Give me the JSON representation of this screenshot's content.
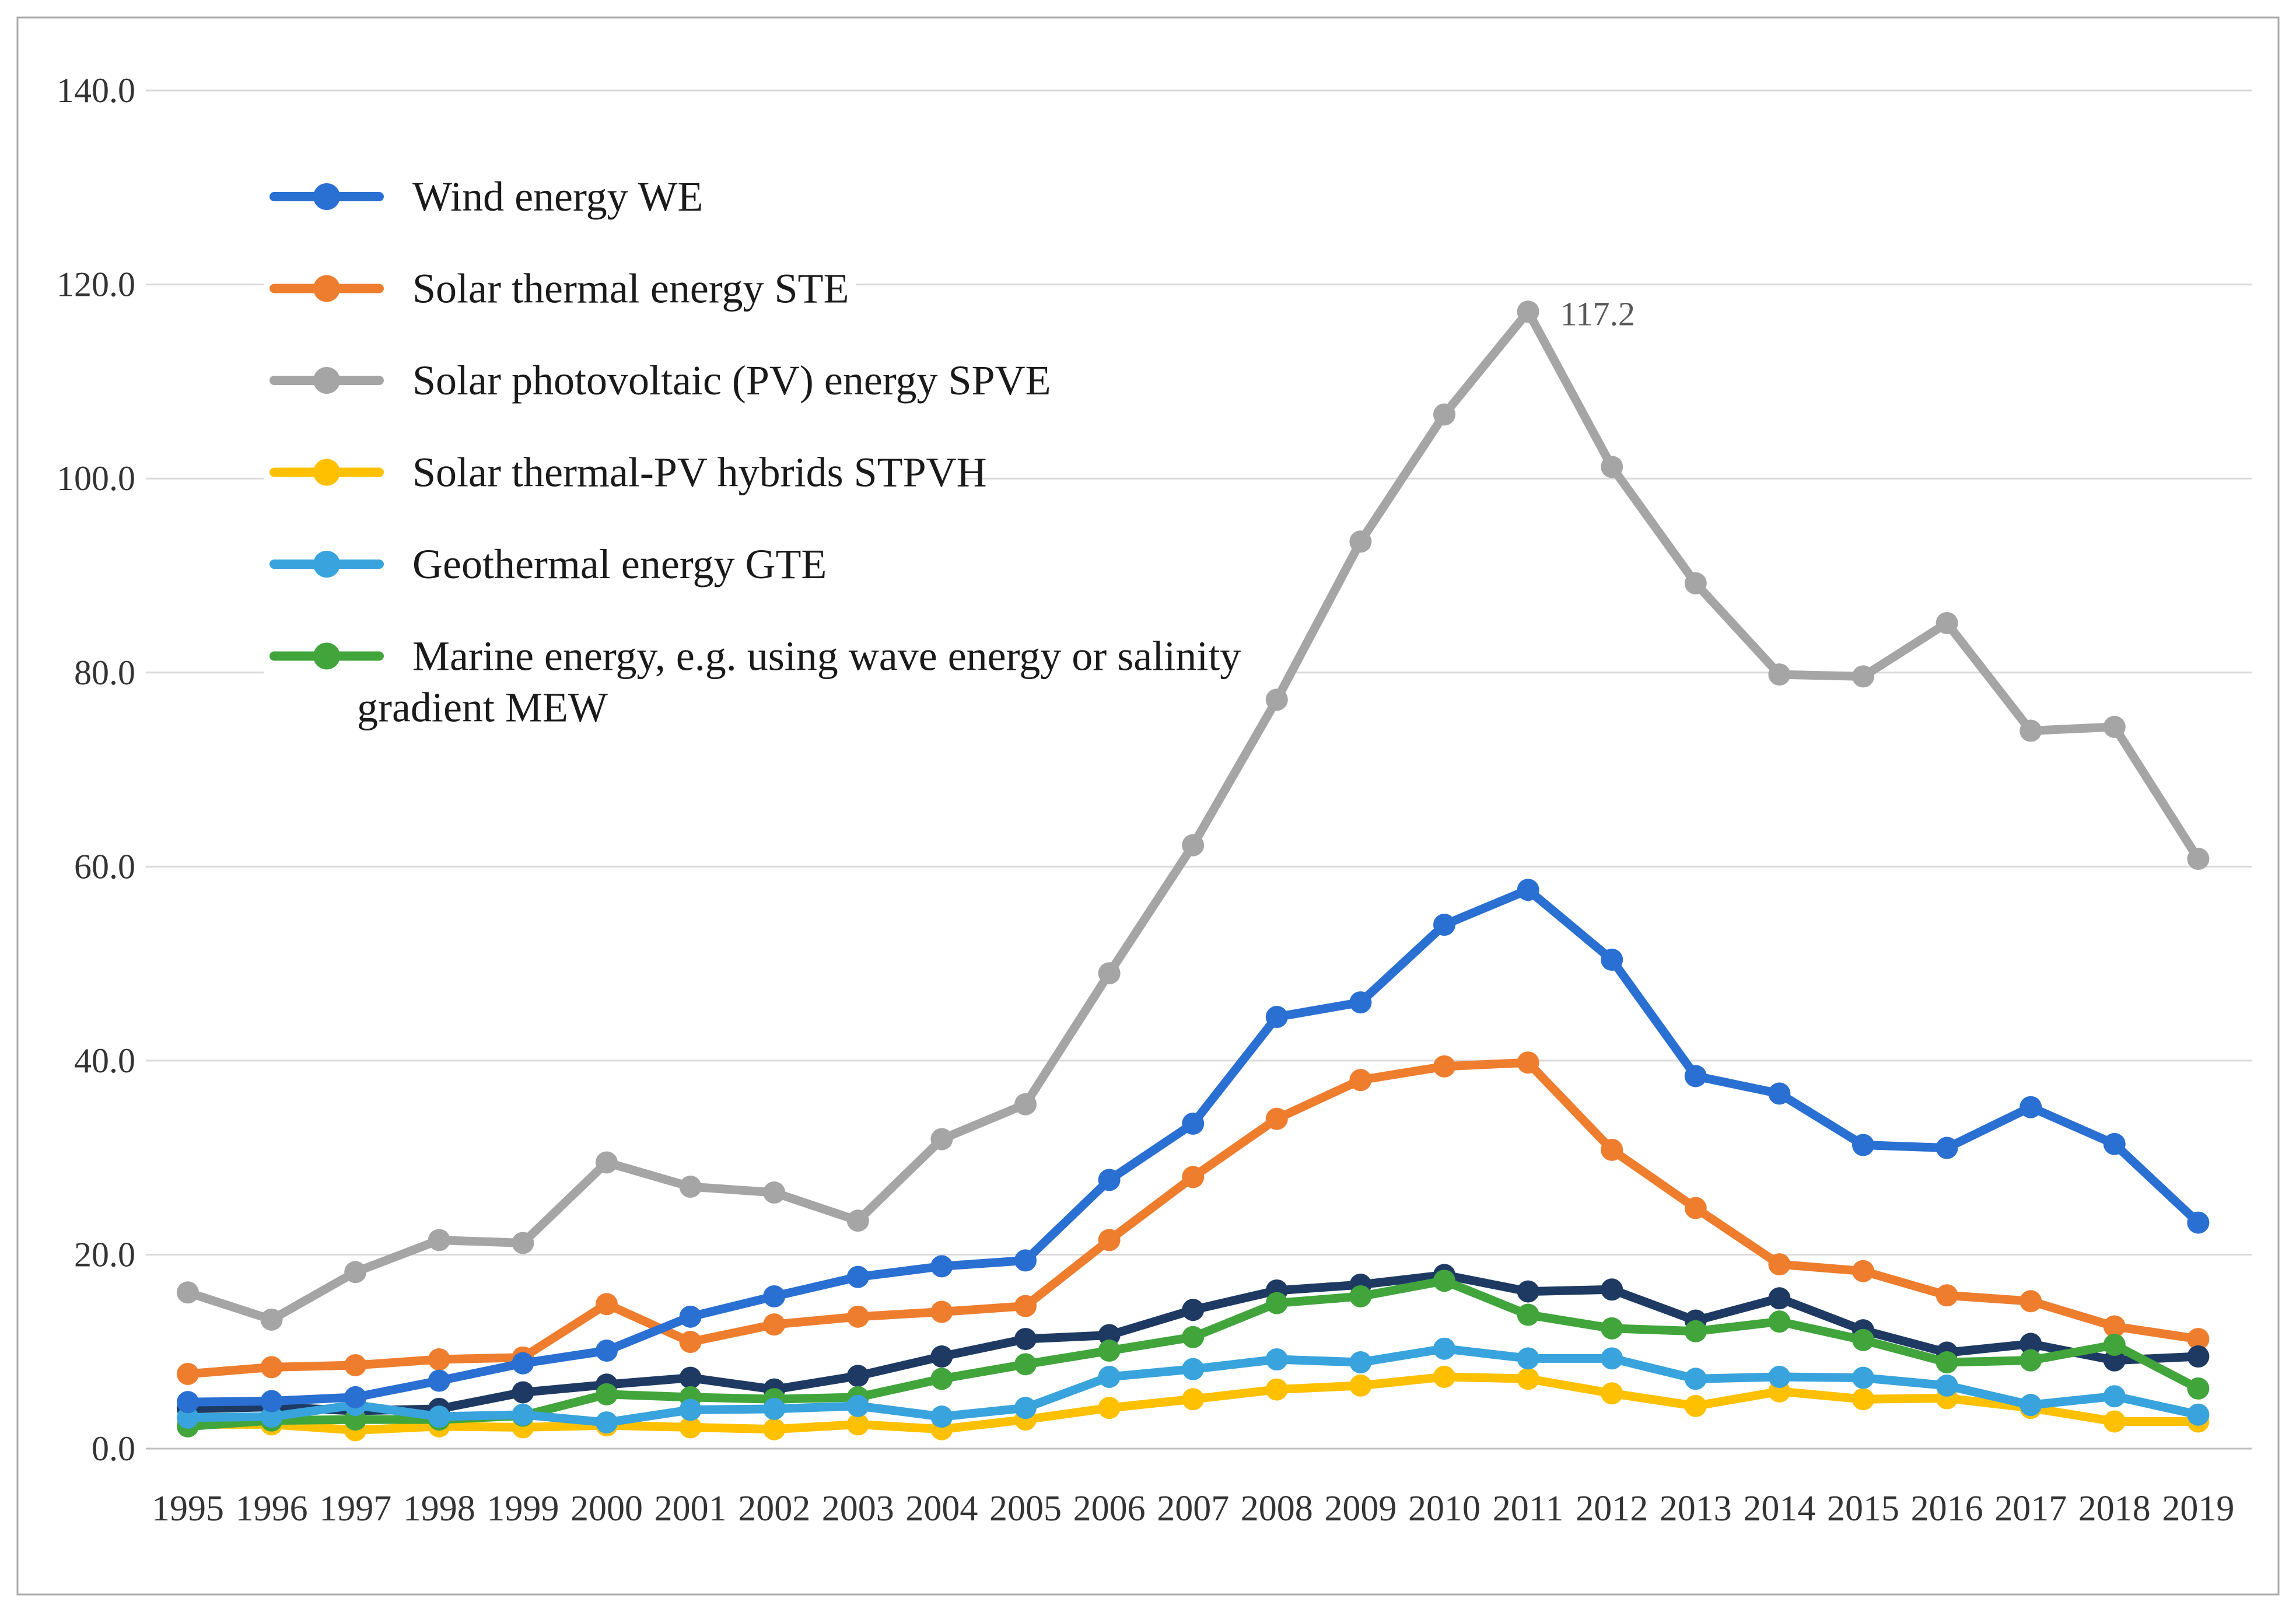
{
  "figure": {
    "background": "#FFFFFF",
    "border_color": "#A9A9A9",
    "gridline_color": "#D9D9D9",
    "axis_line_color": "#BFBFBF",
    "tick_label_color": "#333333",
    "legend_text_color": "#1A1A1A",
    "annotation_color": "#595959"
  },
  "chart_data": {
    "type": "line",
    "title": "",
    "xlabel": "",
    "ylabel": "",
    "ylim": [
      0,
      140
    ],
    "ytick_step": 20,
    "grid": "horizontal",
    "legend_position": "top-left",
    "x": [
      1995,
      1996,
      1997,
      1998,
      1999,
      2000,
      2001,
      2002,
      2003,
      2004,
      2005,
      2006,
      2007,
      2008,
      2009,
      2010,
      2011,
      2012,
      2013,
      2014,
      2015,
      2016,
      2017,
      2018,
      2019
    ],
    "series": [
      {
        "code": "we",
        "name": "Wind energy WE",
        "color": "#2A6FD2",
        "in_legend": true,
        "values": [
          4.8,
          4.9,
          5.3,
          7.0,
          8.8,
          10.1,
          13.6,
          15.7,
          17.7,
          18.8,
          19.4,
          27.7,
          33.5,
          44.5,
          46.0,
          54.0,
          57.6,
          50.4,
          38.4,
          36.6,
          31.3,
          31.0,
          35.2,
          31.4,
          23.3
        ]
      },
      {
        "code": "ste",
        "name": "Solar thermal energy STE",
        "color": "#EE7D2E",
        "in_legend": true,
        "values": [
          7.7,
          8.4,
          8.6,
          9.2,
          9.4,
          14.9,
          11.0,
          12.8,
          13.6,
          14.1,
          14.7,
          21.5,
          28.0,
          34.0,
          38.0,
          39.4,
          39.8,
          30.8,
          24.8,
          19.0,
          18.3,
          15.8,
          15.2,
          12.6,
          11.3
        ]
      },
      {
        "code": "spve",
        "name": "Solar photovoltaic (PV) energy SPVE",
        "color": "#A5A5A5",
        "in_legend": true,
        "values": [
          16.1,
          13.3,
          18.2,
          21.5,
          21.2,
          29.5,
          27.0,
          26.4,
          23.5,
          31.9,
          35.5,
          49.0,
          62.2,
          77.2,
          93.5,
          106.6,
          117.2,
          101.2,
          89.2,
          79.8,
          79.6,
          85.1,
          74.0,
          74.4,
          60.8
        ]
      },
      {
        "code": "stpvh",
        "name": "Solar thermal-PV hybrids STPVH",
        "color": "#FFC000",
        "in_legend": true,
        "values": [
          2.5,
          2.5,
          1.9,
          2.3,
          2.2,
          2.4,
          2.2,
          2.0,
          2.5,
          2.0,
          3.0,
          4.2,
          5.1,
          6.1,
          6.5,
          7.4,
          7.2,
          5.7,
          4.4,
          5.9,
          5.1,
          5.2,
          4.2,
          2.8,
          2.8
        ]
      },
      {
        "code": "gte",
        "name": "Geothermal energy GTE",
        "color": "#38A3DC",
        "in_legend": true,
        "values": [
          3.2,
          3.3,
          4.5,
          3.3,
          3.5,
          2.7,
          4.0,
          4.1,
          4.4,
          3.3,
          4.2,
          7.4,
          8.2,
          9.2,
          8.9,
          10.3,
          9.3,
          9.3,
          7.2,
          7.4,
          7.3,
          6.5,
          4.5,
          5.4,
          3.5
        ]
      },
      {
        "code": "mew",
        "name": "Marine energy, e.g. using wave energy or salinity gradient MEW",
        "color": "#41A53C",
        "in_legend": true,
        "values": [
          2.3,
          2.9,
          3.0,
          3.0,
          3.4,
          5.6,
          5.3,
          5.1,
          5.3,
          7.2,
          8.7,
          10.1,
          11.5,
          15.0,
          15.7,
          17.3,
          13.8,
          12.4,
          12.1,
          13.1,
          11.2,
          8.9,
          9.1,
          10.7,
          6.2
        ]
      },
      {
        "code": "navy",
        "name": "(unlabeled dark navy series)",
        "color": "#1E3A63",
        "in_legend": false,
        "values": [
          4.1,
          4.3,
          3.9,
          4.1,
          5.8,
          6.6,
          7.3,
          6.1,
          7.5,
          9.5,
          11.3,
          11.7,
          14.3,
          16.3,
          16.9,
          17.9,
          16.2,
          16.4,
          13.2,
          15.5,
          12.2,
          9.9,
          10.8,
          9.1,
          9.5
        ]
      }
    ],
    "annotations": [
      {
        "text": "117.2",
        "series": "Solar photovoltaic (PV) energy SPVE",
        "x": 2011,
        "y": 117.2
      }
    ]
  },
  "y_axis": {
    "tick_labels": [
      "0.0",
      "20.0",
      "40.0",
      "60.0",
      "80.0",
      "100.0",
      "120.0",
      "140.0"
    ]
  },
  "x_axis": {
    "tick_labels": [
      "1995",
      "1996",
      "1997",
      "1998",
      "1999",
      "2000",
      "2001",
      "2002",
      "2003",
      "2004",
      "2005",
      "2006",
      "2007",
      "2008",
      "2009",
      "2010",
      "2011",
      "2012",
      "2013",
      "2014",
      "2015",
      "2016",
      "2017",
      "2018",
      "2019"
    ]
  },
  "legend": {
    "items": [
      {
        "code": "we",
        "color": "#2A6FD2",
        "lines": [
          "Wind energy WE"
        ]
      },
      {
        "code": "ste",
        "color": "#EE7D2E",
        "lines": [
          "Solar thermal energy STE"
        ]
      },
      {
        "code": "spve",
        "color": "#A5A5A5",
        "lines": [
          "Solar photovoltaic (PV) energy SPVE"
        ]
      },
      {
        "code": "stpvh",
        "color": "#FFC000",
        "lines": [
          "Solar thermal-PV hybrids STPVH"
        ]
      },
      {
        "code": "gte",
        "color": "#38A3DC",
        "lines": [
          "Geothermal energy GTE"
        ]
      },
      {
        "code": "mew",
        "color": "#41A53C",
        "lines": [
          "Marine energy, e.g. using wave energy or salinity",
          "gradient MEW"
        ]
      }
    ]
  }
}
